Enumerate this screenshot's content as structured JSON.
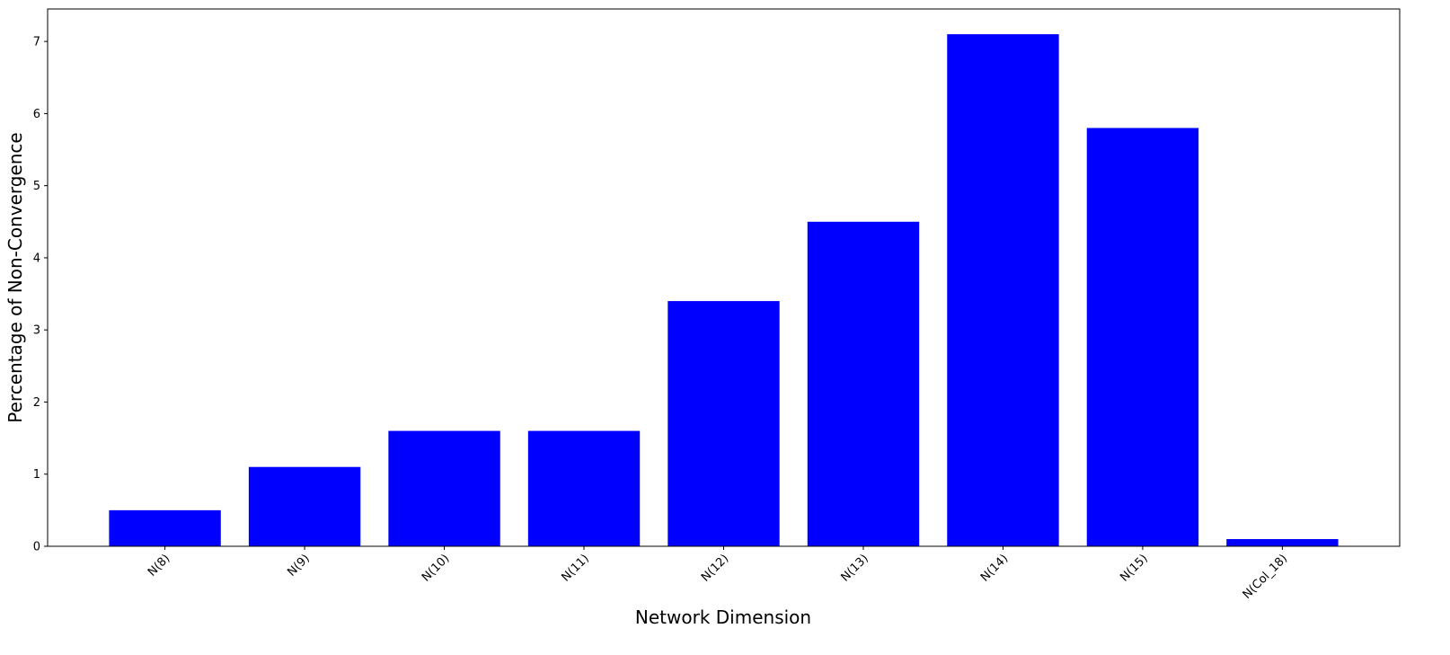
{
  "chart_data": {
    "type": "bar",
    "x_label": "Network Dimension",
    "y_label": "Percentage of Non-Convergence",
    "categories": [
      "N(8)",
      "N(9)",
      "N(10)",
      "N(11)",
      "N(12)",
      "N(13)",
      "N(14)",
      "N(15)",
      "N(Col_18)"
    ],
    "values": [
      0.5,
      1.1,
      1.6,
      1.6,
      3.4,
      4.5,
      7.1,
      5.8,
      0.1
    ],
    "color": "#0000ff",
    "ylim": [
      0,
      7.45
    ],
    "yticks": [
      0,
      1,
      2,
      3,
      4,
      5,
      6,
      7
    ],
    "grid": false
  }
}
